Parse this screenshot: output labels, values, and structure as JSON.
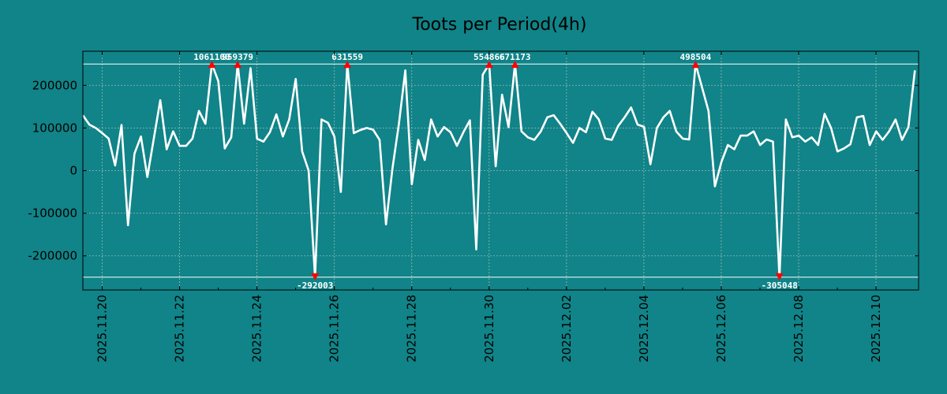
{
  "chart_data": {
    "type": "line",
    "title": "Toots per Period(4h)",
    "xlabel": "",
    "ylabel": "",
    "ylim": [
      -280000,
      280000
    ],
    "yticks": [
      -200000,
      -100000,
      0,
      100000,
      200000
    ],
    "yticklabels": [
      "-200000",
      "-100000",
      "0",
      "100000",
      "200000"
    ],
    "xlim_days": [
      0,
      21.6
    ],
    "xticks_days": [
      0.5,
      2.5,
      4.5,
      6.5,
      8.5,
      10.5,
      12.5,
      14.5,
      16.5,
      18.5,
      20.5
    ],
    "xticklabels": [
      "2025.11.20",
      "2025.11.22",
      "2025.11.24",
      "2025.11.26",
      "2025.11.28",
      "2025.11.30",
      "2025.12.02",
      "2025.12.04",
      "2025.12.06",
      "2025.12.08",
      "2025.12.10"
    ],
    "clip_bounds": [
      250000,
      -250000
    ],
    "series": [
      {
        "name": "toots",
        "step_days": 0.1667,
        "values": [
          130000,
          108000,
          100000,
          88000,
          75000,
          12000,
          107000,
          -128000,
          40000,
          80000,
          -15000,
          75000,
          165000,
          50000,
          92000,
          58000,
          58000,
          75000,
          140000,
          110000,
          250000,
          210000,
          52000,
          78000,
          250000,
          110000,
          240000,
          75000,
          68000,
          90000,
          132000,
          80000,
          120000,
          215000,
          45000,
          0,
          -250000,
          120000,
          112000,
          80000,
          -50000,
          250000,
          88000,
          95000,
          100000,
          96000,
          72000,
          -126000,
          5000,
          110000,
          235000,
          -32000,
          72000,
          25000,
          120000,
          80000,
          102000,
          90000,
          58000,
          90000,
          118000,
          -185000,
          225000,
          250000,
          10000,
          178000,
          102000,
          250000,
          92000,
          78000,
          72000,
          92000,
          125000,
          130000,
          110000,
          88000,
          65000,
          100000,
          90000,
          138000,
          120000,
          75000,
          72000,
          105000,
          125000,
          148000,
          108000,
          103000,
          15000,
          100000,
          125000,
          140000,
          92000,
          75000,
          73000,
          250000,
          195000,
          140000,
          -37000,
          20000,
          60000,
          50000,
          82000,
          82000,
          92000,
          60000,
          73000,
          68000,
          -250000,
          120000,
          78000,
          82000,
          68000,
          78000,
          60000,
          133000,
          100000,
          45000,
          52000,
          62000,
          125000,
          128000,
          60000,
          92000,
          72000,
          92000,
          120000,
          72000,
          102000,
          235000
        ]
      }
    ],
    "annotations": [
      {
        "label": "1061100",
        "index": 20,
        "side": "top"
      },
      {
        "label": "959379",
        "index": 24,
        "side": "top"
      },
      {
        "label": "-292003",
        "index": 36,
        "side": "bottom"
      },
      {
        "label": "631559",
        "index": 41,
        "side": "top"
      },
      {
        "label": "554866",
        "index": 63,
        "side": "top"
      },
      {
        "label": "671173",
        "index": 67,
        "side": "top"
      },
      {
        "label": "498504",
        "index": 95,
        "side": "top"
      },
      {
        "label": "-305048",
        "index": 108,
        "side": "bottom"
      }
    ]
  }
}
